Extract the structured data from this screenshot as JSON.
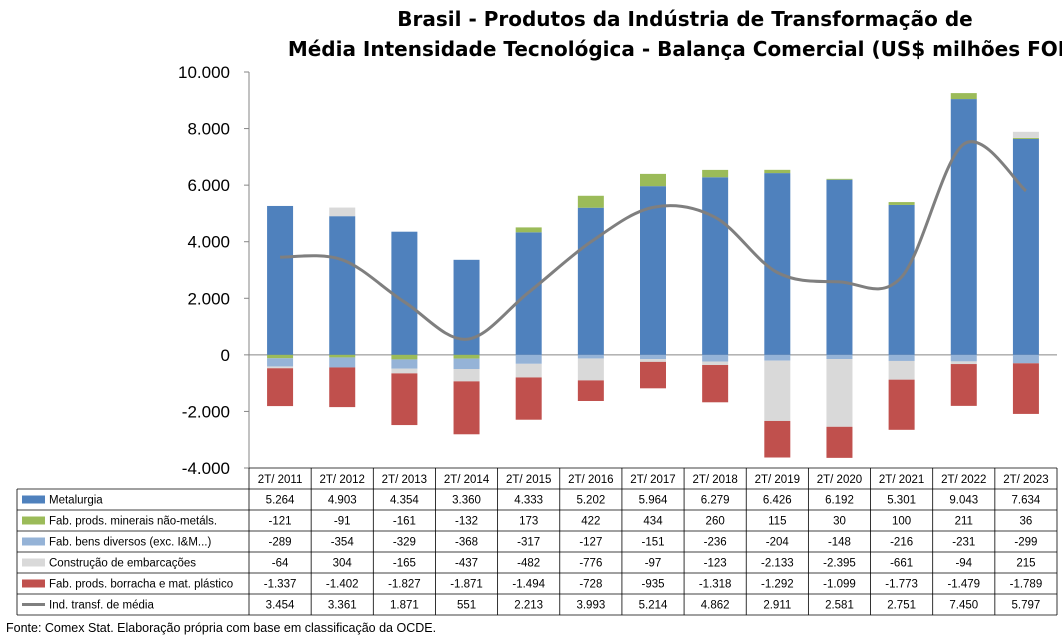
{
  "chart_data": {
    "type": "bar",
    "title_line1": "Brasil - Produtos da Indústria de Transformação de",
    "title_line2": "Média Intensidade Tecnológica - Balança Comercial (US$ milhões FOB)",
    "categories": [
      "2T/ 2011",
      "2T/ 2012",
      "2T/ 2013",
      "2T/ 2014",
      "2T/ 2015",
      "2T/ 2016",
      "2T/ 2017",
      "2T/ 2018",
      "2T/ 2019",
      "2T/ 2020",
      "2T/ 2021",
      "2T/ 2022",
      "2T/ 2023"
    ],
    "ylim": [
      -4000,
      10000
    ],
    "yticks": [
      10000,
      8000,
      6000,
      4000,
      2000,
      0,
      -2000,
      -4000
    ],
    "ytick_labels": [
      "10.000",
      "8.000",
      "6.000",
      "4.000",
      "2.000",
      "0",
      "-2.000",
      "-4.000"
    ],
    "grid": false,
    "stacked": true,
    "series": [
      {
        "name": "Metalurgia",
        "color": "#4F81BD",
        "type": "bar",
        "values": [
          5264,
          4903,
          4354,
          3360,
          4333,
          5202,
          5964,
          6279,
          6426,
          6192,
          5301,
          9043,
          7634
        ],
        "labels": [
          "5.264",
          "4.903",
          "4.354",
          "3.360",
          "4.333",
          "5.202",
          "5.964",
          "6.279",
          "6.426",
          "6.192",
          "5.301",
          "9.043",
          "7.634"
        ]
      },
      {
        "name": "Fab. prods. minerais não-metáls.",
        "color": "#9BBB59",
        "type": "bar",
        "values": [
          -121,
          -91,
          -161,
          -132,
          173,
          422,
          434,
          260,
          115,
          30,
          100,
          211,
          36
        ],
        "labels": [
          "-121",
          "-91",
          "-161",
          "-132",
          "173",
          "422",
          "434",
          "260",
          "115",
          "30",
          "100",
          "211",
          "36"
        ]
      },
      {
        "name": "Fab. bens diversos (exc. I&M...)",
        "color": "#95B3D7",
        "type": "bar",
        "values": [
          -289,
          -354,
          -329,
          -368,
          -317,
          -127,
          -151,
          -236,
          -204,
          -148,
          -216,
          -231,
          -299
        ],
        "labels": [
          "-289",
          "-354",
          "-329",
          "-368",
          "-317",
          "-127",
          "-151",
          "-236",
          "-204",
          "-148",
          "-216",
          "-231",
          "-299"
        ]
      },
      {
        "name": "Construção de embarcações",
        "color": "#D9D9D9",
        "type": "bar",
        "values": [
          -64,
          304,
          -165,
          -437,
          -482,
          -776,
          -97,
          -123,
          -2133,
          -2395,
          -661,
          -94,
          215
        ],
        "labels": [
          "-64",
          "304",
          "-165",
          "-437",
          "-482",
          "-776",
          "-97",
          "-123",
          "-2.133",
          "-2.395",
          "-661",
          "-94",
          "215"
        ]
      },
      {
        "name": "Fab. prods. borracha e mat. plástico",
        "color": "#C0504D",
        "type": "bar",
        "values": [
          -1337,
          -1402,
          -1827,
          -1871,
          -1494,
          -728,
          -935,
          -1318,
          -1292,
          -1099,
          -1773,
          -1479,
          -1789
        ],
        "labels": [
          "-1.337",
          "-1.402",
          "-1.827",
          "-1.871",
          "-1.494",
          "-728",
          "-935",
          "-1.318",
          "-1.292",
          "-1.099",
          "-1.773",
          "-1.479",
          "-1.789"
        ]
      },
      {
        "name": "Ind. transf. de média",
        "color": "#7F7F7F",
        "type": "line",
        "values": [
          3454,
          3361,
          1871,
          551,
          2213,
          3993,
          5214,
          4862,
          2911,
          2581,
          2751,
          7450,
          5797
        ],
        "labels": [
          "3.454",
          "3.361",
          "1.871",
          "551",
          "2.213",
          "3.993",
          "5.214",
          "4.862",
          "2.911",
          "2.581",
          "2.751",
          "7.450",
          "5.797"
        ]
      }
    ],
    "source": "Fonte:  Comex Stat. Elaboração própria com base em classificação da OCDE."
  }
}
